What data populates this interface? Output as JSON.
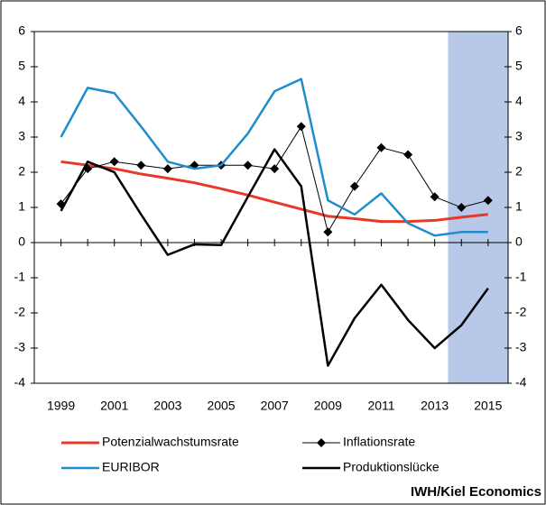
{
  "chart_data": {
    "type": "line",
    "x": [
      1999,
      2000,
      2001,
      2002,
      2003,
      2004,
      2005,
      2006,
      2007,
      2008,
      2009,
      2010,
      2011,
      2012,
      2013,
      2014,
      2015
    ],
    "xlim": [
      1998,
      2015.75
    ],
    "xticks": [
      1999,
      2001,
      2003,
      2005,
      2007,
      2009,
      2011,
      2013,
      2015
    ],
    "ylim": [
      -4,
      6
    ],
    "yticks": [
      -4,
      -3,
      -2,
      -1,
      0,
      1,
      2,
      3,
      4,
      5,
      6
    ],
    "y2lim": [
      -4,
      6
    ],
    "y2ticks": [
      -4,
      -3,
      -2,
      -1,
      0,
      1,
      2,
      3,
      4,
      5,
      6
    ],
    "forecast_span": [
      2013.5,
      2015.75
    ],
    "forecast_color": "#b8c8e8",
    "series": [
      {
        "name": "Potenzialwachstumsrate",
        "color": "#e8382a",
        "width": 3,
        "values": [
          2.3,
          2.2,
          2.1,
          1.95,
          1.83,
          1.7,
          1.53,
          1.35,
          1.15,
          0.95,
          0.75,
          0.68,
          0.6,
          0.6,
          0.63,
          0.72,
          0.8
        ]
      },
      {
        "name": "Inflationsrate",
        "color": "#000000",
        "width": 1,
        "marker": "diamond",
        "values": [
          1.1,
          2.1,
          2.3,
          2.2,
          2.1,
          2.2,
          2.2,
          2.2,
          2.1,
          3.3,
          0.3,
          1.6,
          2.7,
          2.5,
          1.3,
          1.0,
          1.2
        ]
      },
      {
        "name": "EURIBOR",
        "color": "#1f8dcc",
        "width": 2.5,
        "values": [
          3.0,
          4.4,
          4.25,
          3.3,
          2.3,
          2.1,
          2.2,
          3.1,
          4.3,
          4.65,
          1.2,
          0.8,
          1.4,
          0.55,
          0.2,
          0.3,
          0.3
        ]
      },
      {
        "name": "Produktionslücke",
        "color": "#000000",
        "width": 2.5,
        "values": [
          0.9,
          2.3,
          2.0,
          0.8,
          -0.35,
          -0.05,
          -0.07,
          1.3,
          2.65,
          1.6,
          -3.5,
          -2.15,
          -1.2,
          -2.2,
          -3.0,
          -2.35,
          -1.3
        ]
      }
    ],
    "source": "IWH/Kiel Economics"
  }
}
